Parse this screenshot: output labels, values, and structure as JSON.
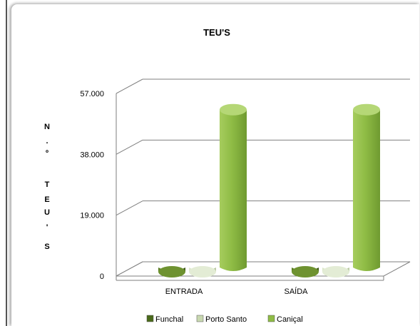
{
  "chart_data": {
    "type": "bar",
    "title": "TEU'S",
    "ylabel_chars": [
      "N",
      ".",
      "º",
      "",
      "T",
      "E",
      "U",
      "'",
      "S"
    ],
    "ylim": [
      0,
      57000
    ],
    "yticks": [
      "0",
      "19.000",
      "38.000",
      "57.000"
    ],
    "ytick_values": [
      0,
      19000,
      38000,
      57000
    ],
    "categories": [
      "ENTRADA",
      "SAÍDA"
    ],
    "series": [
      {
        "name": "Funchal",
        "values": [
          0,
          0
        ],
        "color": "#4a6a1a"
      },
      {
        "name": "Porto Santo",
        "values": [
          300,
          300
        ],
        "color": "#c8d8b0"
      },
      {
        "name": "Caniçal",
        "values": [
          51500,
          51500
        ],
        "color": "#8fbc45"
      }
    ],
    "grid": true,
    "legend_position": "bottom"
  }
}
